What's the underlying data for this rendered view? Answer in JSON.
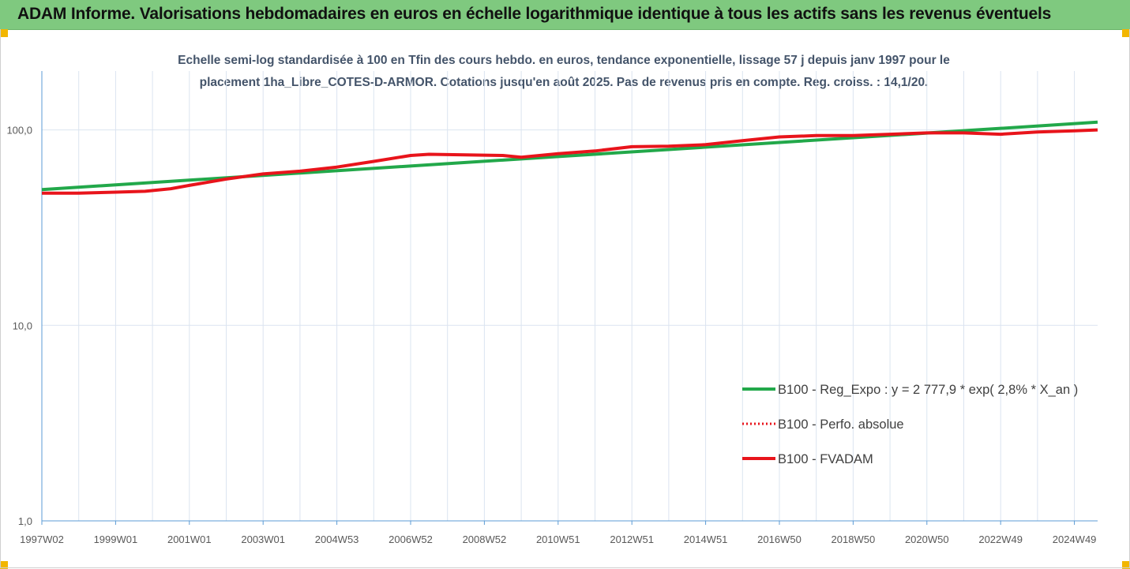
{
  "header": {
    "title": "ADAM Informe. Valorisations hebdomadaires en euros en échelle logarithmique identique à tous les actifs sans les revenus éventuels"
  },
  "colors": {
    "header_bg": "#7fc97f",
    "corner": "#f2b600",
    "regression": "#22a84a",
    "perf": "#e8141b",
    "fvadam": "#e8141b",
    "grid": "#dbe4f0"
  },
  "chart_data": {
    "type": "line",
    "title_lines": [
      "Echelle semi-log standardisée à 100 en Tfin des cours hebdo. en euros, tendance exponentielle, lissage 57 j depuis janv 1997 pour le",
      "placement 1ha_Libre_COTES-D-ARMOR. Cotations jusqu'en août 2025. Pas de revenus pris en compte. Reg. croiss. : 14,1/20."
    ],
    "y_scale": "log",
    "ylim": [
      1,
      200
    ],
    "y_ticks": [
      {
        "value": 1,
        "label": "1,0"
      },
      {
        "value": 10,
        "label": "10,0"
      },
      {
        "value": 100,
        "label": "100,0"
      }
    ],
    "xlim": [
      1997.0,
      2025.63
    ],
    "x_ticks": [
      {
        "x": 1997.0,
        "label": "1997W02"
      },
      {
        "x": 1999.0,
        "label": "1999W01"
      },
      {
        "x": 2001.0,
        "label": "2001W01"
      },
      {
        "x": 2003.0,
        "label": "2003W01"
      },
      {
        "x": 2005.0,
        "label": "2004W53"
      },
      {
        "x": 2007.0,
        "label": "2006W52"
      },
      {
        "x": 2009.0,
        "label": "2008W52"
      },
      {
        "x": 2011.0,
        "label": "2010W51"
      },
      {
        "x": 2013.0,
        "label": "2012W51"
      },
      {
        "x": 2015.0,
        "label": "2014W51"
      },
      {
        "x": 2017.0,
        "label": "2016W50"
      },
      {
        "x": 2019.0,
        "label": "2018W50"
      },
      {
        "x": 2021.0,
        "label": "2020W50"
      },
      {
        "x": 2023.0,
        "label": "2022W49"
      },
      {
        "x": 2025.0,
        "label": "2024W49"
      }
    ],
    "legend_position": "right",
    "series": [
      {
        "name": "B100 - Reg_Expo : y = 2 777,9 * exp( 2,8% *  X_an )",
        "style": "solid-green",
        "points": [
          [
            1997.0,
            49.5
          ],
          [
            2011.0,
            73.0
          ],
          [
            2025.63,
            109.5
          ]
        ]
      },
      {
        "name": "B100 - Perfo. absolue",
        "style": "dotted-red",
        "points": []
      },
      {
        "name": "B100 - FVADAM",
        "style": "solid-red",
        "points": [
          [
            1997.0,
            47.5
          ],
          [
            1998.0,
            47.5
          ],
          [
            1999.0,
            48.0
          ],
          [
            1999.8,
            48.5
          ],
          [
            2000.5,
            50.0
          ],
          [
            2001.0,
            52.0
          ],
          [
            2002.0,
            56.0
          ],
          [
            2003.0,
            59.5
          ],
          [
            2004.0,
            61.5
          ],
          [
            2005.0,
            64.5
          ],
          [
            2006.0,
            69.0
          ],
          [
            2007.0,
            74.0
          ],
          [
            2007.5,
            75.0
          ],
          [
            2008.5,
            74.5
          ],
          [
            2009.5,
            74.0
          ],
          [
            2010.0,
            72.5
          ],
          [
            2011.0,
            75.5
          ],
          [
            2012.0,
            78.0
          ],
          [
            2013.0,
            82.0
          ],
          [
            2014.0,
            82.5
          ],
          [
            2015.0,
            84.0
          ],
          [
            2016.0,
            88.0
          ],
          [
            2017.0,
            92.0
          ],
          [
            2018.0,
            93.5
          ],
          [
            2019.0,
            93.5
          ],
          [
            2020.0,
            95.0
          ],
          [
            2021.0,
            96.5
          ],
          [
            2022.0,
            96.5
          ],
          [
            2023.0,
            95.0
          ],
          [
            2024.0,
            97.5
          ],
          [
            2025.0,
            99.0
          ],
          [
            2025.63,
            100.0
          ]
        ]
      }
    ]
  }
}
